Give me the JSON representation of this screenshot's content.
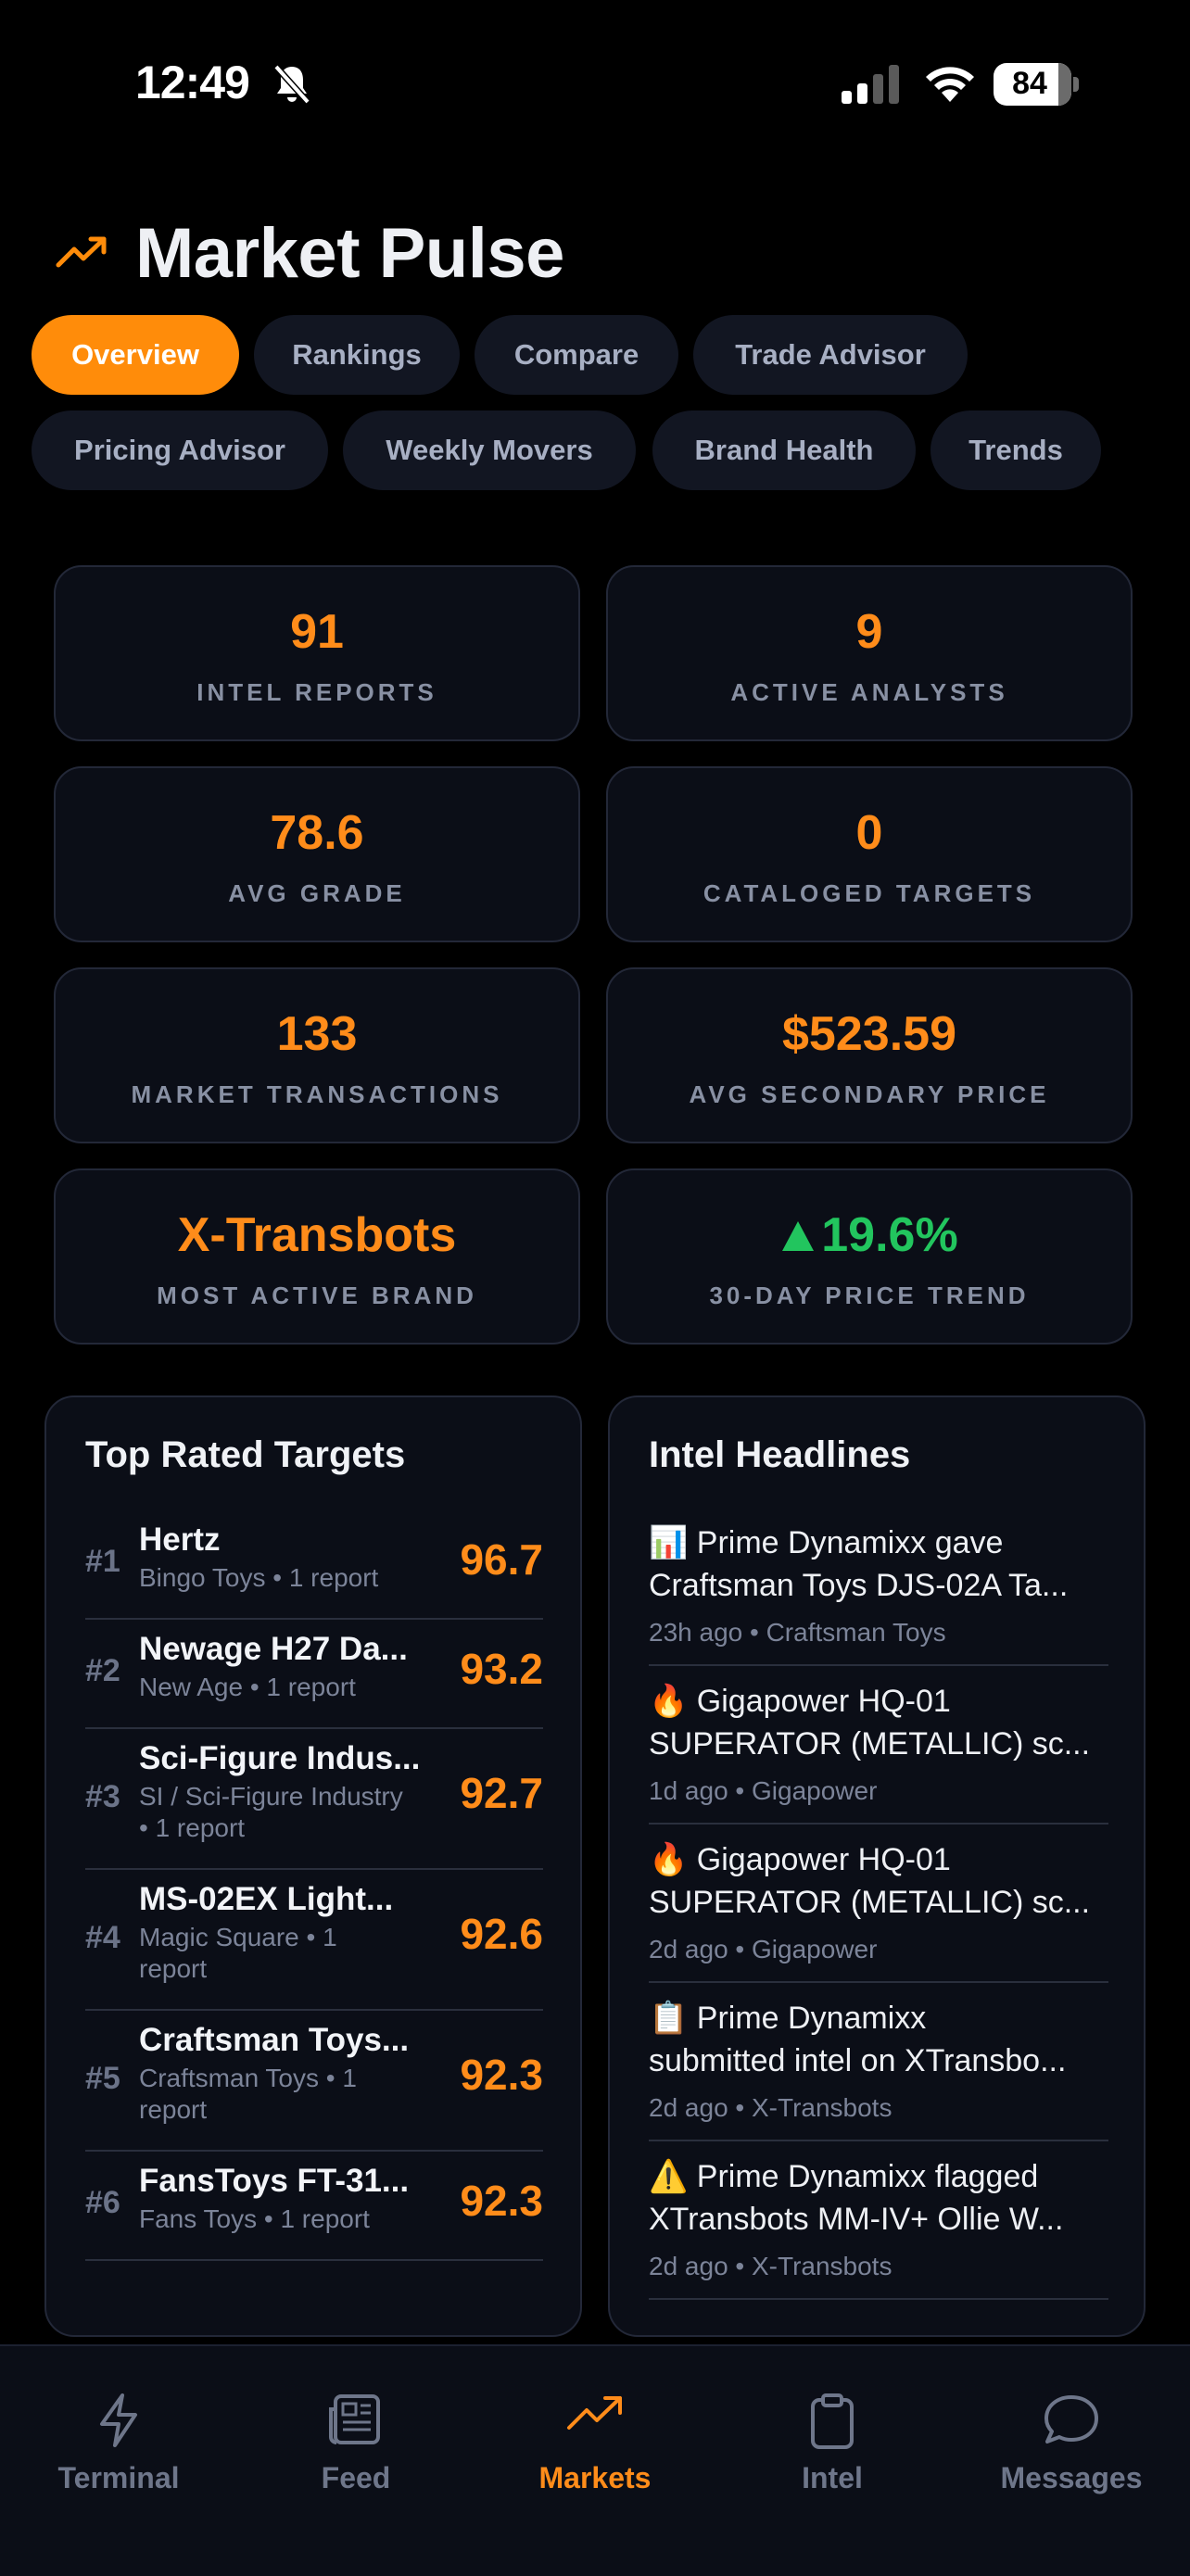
{
  "status_bar": {
    "time": "12:49",
    "battery": "84"
  },
  "header": {
    "title": "Market Pulse"
  },
  "tabs": [
    {
      "label": "Overview",
      "active": true
    },
    {
      "label": "Rankings"
    },
    {
      "label": "Compare"
    },
    {
      "label": "Trade Advisor"
    },
    {
      "label": "Pricing Advisor"
    },
    {
      "label": "Weekly Movers"
    },
    {
      "label": "Brand Health"
    },
    {
      "label": "Trends"
    }
  ],
  "stats": [
    {
      "value": "91",
      "label": "INTEL REPORTS"
    },
    {
      "value": "9",
      "label": "ACTIVE ANALYSTS"
    },
    {
      "value": "78.6",
      "label": "AVG GRADE"
    },
    {
      "value": "0",
      "label": "CATALOGED TARGETS"
    },
    {
      "value": "133",
      "label": "MARKET TRANSACTIONS"
    },
    {
      "value": "$523.59",
      "label": "AVG SECONDARY PRICE"
    },
    {
      "value": "X-Transbots",
      "label": "MOST ACTIVE BRAND"
    },
    {
      "value": "19.6%",
      "label": "30-DAY PRICE TREND",
      "trend": "up",
      "color": "#22c55e"
    }
  ],
  "top_rated": {
    "title": "Top Rated Targets",
    "items": [
      {
        "rank": "#1",
        "name": "Hertz",
        "sub1": "Bingo Toys • 1 report",
        "sub2": "",
        "score": "96.7"
      },
      {
        "rank": "#2",
        "name": "Newage H27 Da...",
        "sub1": "New Age • 1 report",
        "sub2": "",
        "score": "93.2"
      },
      {
        "rank": "#3",
        "name": "Sci-Figure Indus...",
        "sub1": "SI / Sci-Figure Industry",
        "sub2": "• 1 report",
        "score": "92.7"
      },
      {
        "rank": "#4",
        "name": "MS-02EX Light...",
        "sub1": "Magic Square • 1",
        "sub2": "report",
        "score": "92.6"
      },
      {
        "rank": "#5",
        "name": "Craftsman Toys...",
        "sub1": "Craftsman Toys • 1",
        "sub2": "report",
        "score": "92.3"
      },
      {
        "rank": "#6",
        "name": "FansToys FT-31...",
        "sub1": "Fans Toys • 1 report",
        "sub2": "",
        "score": "92.3"
      }
    ]
  },
  "headlines": {
    "title": "Intel Headlines",
    "items": [
      {
        "emoji": "📊",
        "line1": "Prime Dynamixx gave",
        "line2": "Craftsman Toys DJS-02A Ta...",
        "meta": "23h ago • Craftsman Toys"
      },
      {
        "emoji": "🔥",
        "line1": "Gigapower HQ-01",
        "line2": "SUPERATOR (METALLIC) sc...",
        "meta": "1d ago • Gigapower"
      },
      {
        "emoji": "🔥",
        "line1": "Gigapower HQ-01",
        "line2": "SUPERATOR (METALLIC) sc...",
        "meta": "2d ago • Gigapower"
      },
      {
        "emoji": "📋",
        "line1": "Prime Dynamixx",
        "line2": "submitted intel on XTransbo...",
        "meta": "2d ago • X-Transbots"
      },
      {
        "emoji": "⚠️",
        "line1": "Prime Dynamixx flagged",
        "line2": "XTransbots MM-IV+ Ollie W...",
        "meta": "2d ago • X-Transbots"
      }
    ]
  },
  "nav": [
    {
      "label": "Terminal",
      "icon": "bolt-icon"
    },
    {
      "label": "Feed",
      "icon": "newspaper-icon"
    },
    {
      "label": "Markets",
      "icon": "trending-up-icon",
      "active": true
    },
    {
      "label": "Intel",
      "icon": "clipboard-icon"
    },
    {
      "label": "Messages",
      "icon": "chat-icon"
    }
  ],
  "colors": {
    "accent": "#ff8c0a",
    "positive": "#22c55e",
    "background": "#000000",
    "card": "#0b0e17"
  }
}
